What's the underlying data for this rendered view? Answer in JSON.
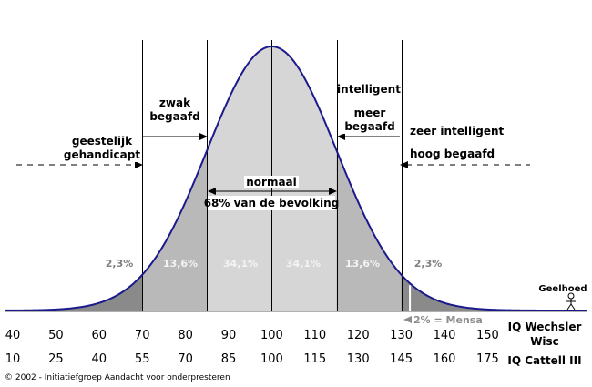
{
  "chart_data": {
    "type": "area",
    "title": "",
    "distribution": {
      "kind": "normal",
      "mean": 100,
      "sd": 15
    },
    "x_range": [
      40,
      160
    ],
    "region_boundaries": [
      70,
      85,
      100,
      115,
      130
    ],
    "regions": [
      {
        "from": 40,
        "to": 70,
        "percent": "2,3%"
      },
      {
        "from": 70,
        "to": 85,
        "percent": "13,6%"
      },
      {
        "from": 85,
        "to": 100,
        "percent": "34,1%"
      },
      {
        "from": 100,
        "to": 115,
        "percent": "34,1%"
      },
      {
        "from": 115,
        "to": 130,
        "percent": "13,6%"
      },
      {
        "from": 130,
        "to": 160,
        "percent": "2,3%"
      }
    ],
    "mensa_cutoff": 132,
    "mensa_label": "2% = Mensa",
    "category_labels": {
      "geestelijk": [
        "geestelijk",
        "gehandicapt"
      ],
      "zwak": [
        "zwak",
        "begaafd"
      ],
      "normaal": [
        "normaal",
        "68% van de bevolking"
      ],
      "intelligent": "intelligent",
      "meer": [
        "meer",
        "begaafd"
      ],
      "zeer": [
        "zeer intelligent",
        "hoog begaafd"
      ]
    },
    "scales": [
      {
        "name": [
          "IQ Wechsler",
          "Wisc"
        ],
        "ticks": [
          "40",
          "50",
          "60",
          "70",
          "80",
          "90",
          "100",
          "110",
          "120",
          "130",
          "140",
          "150"
        ]
      },
      {
        "name": [
          "IQ Cattell III"
        ],
        "ticks": [
          "10",
          "25",
          "40",
          "55",
          "70",
          "85",
          "100",
          "115",
          "130",
          "145",
          "160",
          "175"
        ]
      }
    ],
    "figure": {
      "label": "Geelhoed"
    },
    "colors": {
      "curve": "#1a1a8c",
      "fill_light": "#d6d6d6",
      "fill_mid": "#b9b9b9",
      "fill_dark": "#8a8a8a",
      "mensa_line": "#ffffff"
    }
  },
  "footer": "© 2002 - Initiatiefgroep  Aandacht voor onderpresteren"
}
